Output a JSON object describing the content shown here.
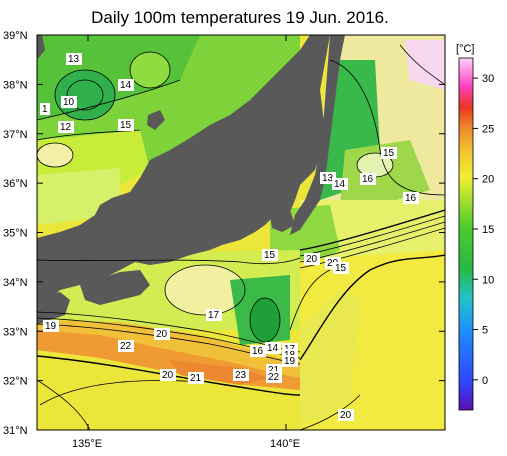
{
  "title": "Daily 100m temperatures 19 Jun. 2016.",
  "map": {
    "lat_labels": [
      "39°N",
      "38°N",
      "37°N",
      "36°N",
      "35°N",
      "34°N",
      "33°N",
      "32°N",
      "31°N"
    ],
    "lon_labels": [
      "135°E",
      "140°E"
    ],
    "land_color": "#595959",
    "contour_labels": [
      "13",
      "14",
      "10",
      "1",
      "12",
      "15",
      "15",
      "13",
      "14",
      "16",
      "16",
      "15",
      "20",
      "20",
      "15",
      "17",
      "19",
      "20",
      "22",
      "14",
      "16",
      "17",
      "18",
      "19",
      "20",
      "21",
      "23",
      "21",
      "22",
      "20"
    ]
  },
  "colorbar": {
    "unit": "[°C]",
    "ticks": [
      "30",
      "25",
      "20",
      "15",
      "10",
      "5",
      "0"
    ],
    "range": [
      -3,
      32
    ],
    "colors": [
      "#6a0dad",
      "#3a3aff",
      "#2a7cff",
      "#25c2d0",
      "#2ec060",
      "#7fd43a",
      "#d8ee30",
      "#f7e838",
      "#f5b23a",
      "#ef6a2a",
      "#e02020",
      "#ff55cc",
      "#ffc8ff"
    ]
  }
}
